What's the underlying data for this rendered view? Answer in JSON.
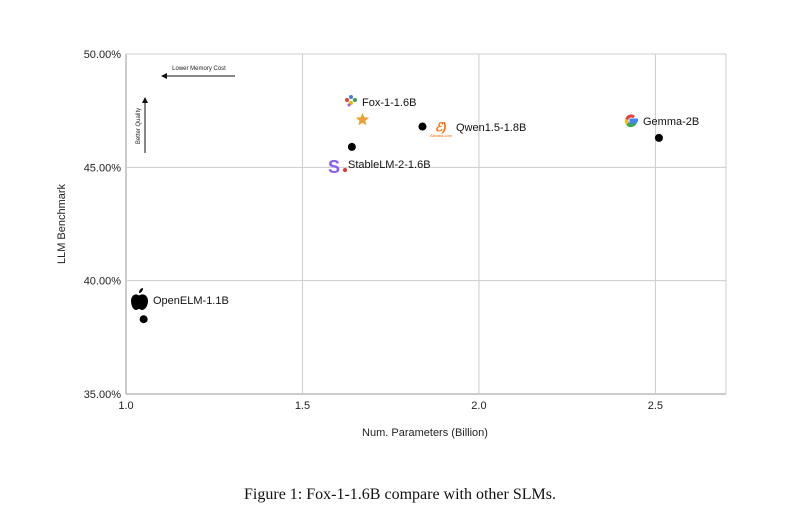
{
  "chart_data": {
    "type": "scatter",
    "xlabel": "Num. Parameters (Billion)",
    "ylabel": "LLM Benchmark",
    "xlim": [
      1.0,
      2.7
    ],
    "ylim": [
      35,
      50
    ],
    "x_ticks": [
      "1.0",
      "1.5",
      "2.0",
      "2.5"
    ],
    "y_ticks": [
      "35.00%",
      "40.00%",
      "45.00%",
      "50.00%"
    ],
    "grid": true,
    "points": [
      {
        "name": "OpenELM-1.1B",
        "x": 1.05,
        "y": 38.3,
        "icon": "apple-logo"
      },
      {
        "name": "StableLM-2-1.6B",
        "x": 1.64,
        "y": 45.9,
        "icon": "stability-logo"
      },
      {
        "name": "Fox-1-1.6B",
        "x": 1.67,
        "y": 47.1,
        "icon": "fox-logo",
        "marker": "star"
      },
      {
        "name": "Qwen1.5-1.8B",
        "x": 1.84,
        "y": 46.8,
        "icon": "alibaba-logo"
      },
      {
        "name": "Gemma-2B",
        "x": 2.51,
        "y": 46.3,
        "icon": "google-logo"
      }
    ],
    "annotations": {
      "memory": "Lower Memory Cost",
      "quality": "Better Quality"
    },
    "colors": {
      "point": "#000000",
      "star": "#f0a030",
      "grid": "#cccccc"
    }
  },
  "caption": "Figure 1: Fox-1-1.6B compare with other SLMs."
}
